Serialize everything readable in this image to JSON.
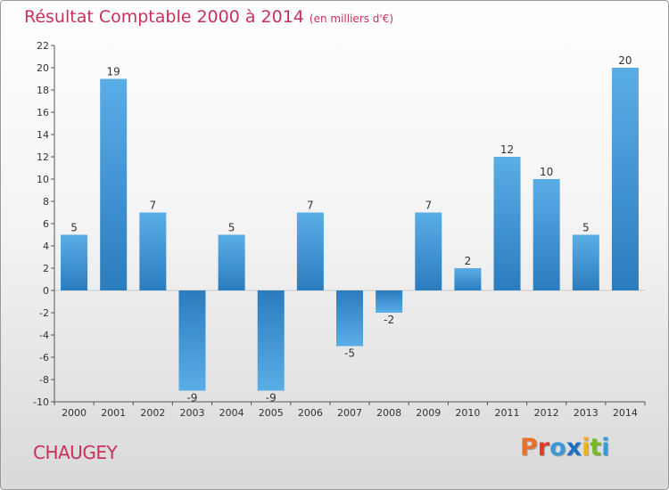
{
  "header": {
    "title": "Résultat Comptable 2000 à 2014",
    "unit": "(en milliers d'€)"
  },
  "footer": {
    "commune": "CHAUGEY",
    "brand": "Proxiti"
  },
  "colors": {
    "bar_light": "#5aaee6",
    "bar_dark": "#2a7cbf",
    "title": "#c8305a",
    "brand_letters": [
      "#e8702a",
      "#e03a2a",
      "#3a9ad9",
      "#1e6fc0",
      "#f0b020",
      "#7ab82a",
      "#3a9ad9"
    ]
  },
  "chart_data": {
    "type": "bar",
    "categories": [
      "2000",
      "2001",
      "2002",
      "2003",
      "2004",
      "2005",
      "2006",
      "2007",
      "2008",
      "2009",
      "2010",
      "2011",
      "2012",
      "2013",
      "2014"
    ],
    "values": [
      5,
      19,
      7,
      -9,
      5,
      -9,
      7,
      -5,
      -2,
      7,
      2,
      12,
      10,
      5,
      20
    ],
    "ylim": [
      -10,
      22
    ],
    "yticks": [
      -10,
      -8,
      -6,
      -4,
      -2,
      0,
      2,
      4,
      6,
      8,
      10,
      12,
      14,
      16,
      18,
      20,
      22
    ],
    "grid": false,
    "legend": "none"
  }
}
